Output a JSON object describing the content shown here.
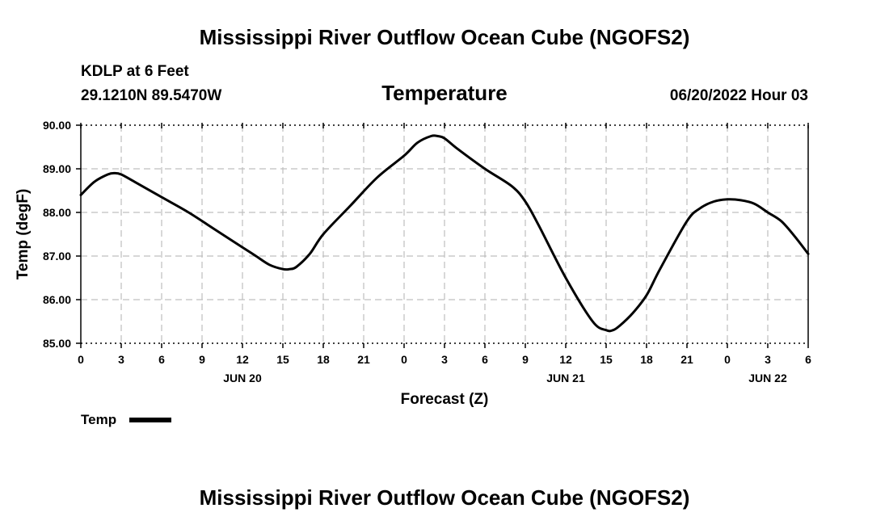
{
  "page": {
    "main_title": "Mississippi River Outflow Ocean Cube (NGOFS2)",
    "station_line": "KDLP at 6 Feet",
    "coords_line": "29.1210N  89.5470W",
    "chart_title": "Temperature",
    "datetime": "06/20/2022 Hour 03",
    "footer_title": "Mississippi River Outflow Ocean Cube (NGOFS2)"
  },
  "chart_data": {
    "type": "line",
    "title": "Temperature",
    "xlabel": "Forecast (Z)",
    "ylabel": "Temp (degF)",
    "x_unit": "hours since 06/20 00Z",
    "xlim": [
      0,
      54
    ],
    "ylim": [
      85.0,
      90.0
    ],
    "yticks": [
      85.0,
      86.0,
      87.0,
      88.0,
      89.0,
      90.0
    ],
    "ytick_labels": [
      "85.00",
      "86.00",
      "87.00",
      "88.00",
      "89.00",
      "90.00"
    ],
    "xticks": [
      0,
      3,
      6,
      9,
      12,
      15,
      18,
      21,
      24,
      27,
      30,
      33,
      36,
      39,
      42,
      45,
      48,
      51,
      54
    ],
    "xtick_labels": [
      "0",
      "3",
      "6",
      "9",
      "12",
      "15",
      "18",
      "21",
      "0",
      "3",
      "6",
      "9",
      "12",
      "15",
      "18",
      "21",
      "0",
      "3",
      "6"
    ],
    "day_labels": [
      {
        "at": 12,
        "text": "JUN 20"
      },
      {
        "at": 36,
        "text": "JUN 21"
      },
      {
        "at": 51,
        "text": "JUN 22"
      }
    ],
    "grid": true,
    "legend": {
      "label": "Temp",
      "placement": "bottom-left"
    },
    "series": [
      {
        "name": "Temp",
        "color": "#000000",
        "x": [
          0,
          1,
          2,
          2.5,
          3,
          4,
          6,
          8,
          10,
          12,
          13,
          14,
          15,
          15.5,
          16,
          17,
          18,
          20,
          22,
          24,
          25,
          26,
          26.5,
          27,
          28,
          30,
          32,
          33,
          34,
          36,
          38,
          39,
          39.5,
          40,
          41,
          42,
          43,
          45,
          46,
          47,
          48,
          49,
          50,
          51,
          52,
          53,
          54
        ],
        "values": [
          88.4,
          88.7,
          88.87,
          88.9,
          88.87,
          88.7,
          88.35,
          88.0,
          87.6,
          87.2,
          87.0,
          86.8,
          86.7,
          86.7,
          86.75,
          87.05,
          87.5,
          88.15,
          88.8,
          89.3,
          89.6,
          89.75,
          89.75,
          89.7,
          89.45,
          89.0,
          88.6,
          88.25,
          87.7,
          86.5,
          85.5,
          85.3,
          85.3,
          85.4,
          85.7,
          86.1,
          86.7,
          87.8,
          88.1,
          88.25,
          88.3,
          88.28,
          88.2,
          88.0,
          87.8,
          87.45,
          87.05
        ]
      }
    ]
  }
}
